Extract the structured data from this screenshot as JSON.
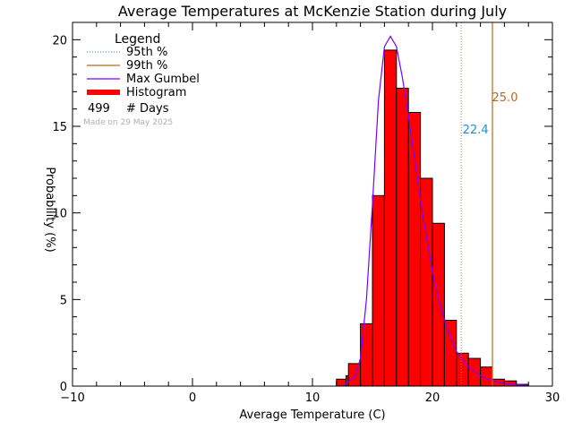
{
  "chart_data": {
    "type": "bar",
    "title": "Average Temperatures at McKenzie Station during July",
    "xlabel": "Average Temperature (C)",
    "ylabel": "Probability (%)",
    "xlim": [
      -10,
      30
    ],
    "ylim": [
      0,
      21
    ],
    "xticks": [
      -10,
      0,
      10,
      20,
      30
    ],
    "yticks": [
      0,
      5,
      10,
      15,
      20
    ],
    "bin_width": 1,
    "bins": [
      {
        "start": 12,
        "value": 0.4
      },
      {
        "start": 12.8,
        "value": 0.6
      },
      {
        "start": 13,
        "value": 1.3
      },
      {
        "start": 14,
        "value": 3.6
      },
      {
        "start": 15,
        "value": 11.0
      },
      {
        "start": 16,
        "value": 19.4
      },
      {
        "start": 17,
        "value": 17.2
      },
      {
        "start": 18,
        "value": 15.8
      },
      {
        "start": 19,
        "value": 12.0
      },
      {
        "start": 20,
        "value": 9.4
      },
      {
        "start": 21,
        "value": 3.8
      },
      {
        "start": 22,
        "value": 1.9
      },
      {
        "start": 23,
        "value": 1.6
      },
      {
        "start": 24,
        "value": 1.1
      },
      {
        "start": 25,
        "value": 0.4
      },
      {
        "start": 26,
        "value": 0.3
      },
      {
        "start": 27,
        "value": 0.1
      }
    ],
    "gumbel_curve": {
      "x": [
        12.5,
        13.5,
        14.0,
        14.5,
        15.0,
        15.5,
        16.0,
        16.5,
        17.0,
        17.5,
        18.0,
        18.5,
        19.0,
        19.5,
        20.0,
        20.5,
        21.0,
        21.5,
        22.0,
        23.0,
        24.0,
        25.0,
        26.0,
        27.0,
        28.0
      ],
      "y": [
        0.0,
        0.5,
        1.6,
        5.0,
        10.5,
        16.5,
        19.6,
        20.2,
        19.6,
        17.8,
        15.6,
        13.2,
        10.8,
        8.6,
        6.6,
        5.0,
        3.8,
        2.8,
        2.0,
        1.1,
        0.6,
        0.3,
        0.15,
        0.07,
        0.03
      ]
    },
    "percentile_95": {
      "value": 22.4,
      "label": "22.4",
      "color": "#1e90c8"
    },
    "percentile_99": {
      "value": 25.0,
      "label": "25.0",
      "color": "#b36b20"
    },
    "legend": {
      "title": "Legend",
      "items": [
        {
          "label": "95th %",
          "style": "dotted",
          "color": "#1e90c8"
        },
        {
          "label": "99th %",
          "style": "solid",
          "color": "#b36b20"
        },
        {
          "label": "Max Gumbel",
          "style": "solid",
          "color": "#7a00ff"
        },
        {
          "label": "Histogram",
          "style": "thick",
          "color": "#ff0000"
        }
      ],
      "count_value": "499",
      "count_label": "# Days",
      "placement": "top-left"
    },
    "made_on": "Made on 29 May 2025",
    "colors": {
      "histogram_fill": "#ff0000",
      "histogram_edge": "#000000",
      "gumbel": "#7a00ff",
      "axis": "#000000"
    }
  }
}
